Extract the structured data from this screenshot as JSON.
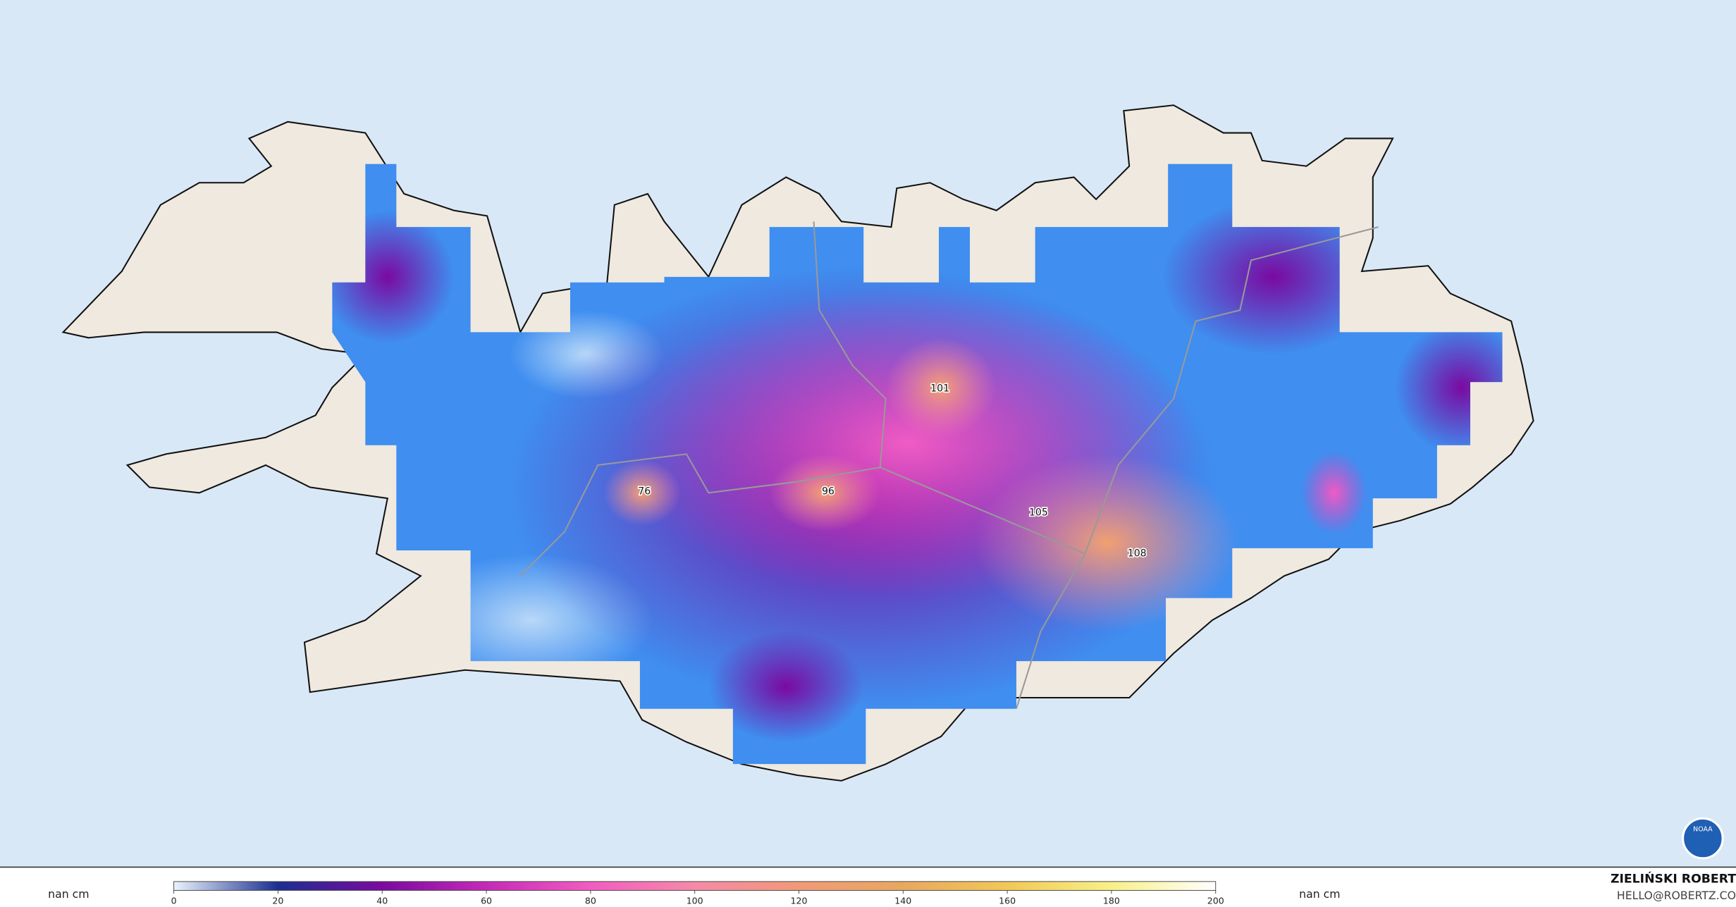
{
  "map": {
    "point_labels": [
      76,
      96,
      101,
      105,
      108
    ]
  },
  "legend": {
    "unit_left": "nan cm",
    "unit_right": "nan cm",
    "lim": [
      0,
      200
    ],
    "ticks": [
      0,
      20,
      40,
      60,
      80,
      100,
      120,
      140,
      160,
      180,
      200
    ],
    "colors": [
      "#eaf3fd",
      "#1b2f8f",
      "#7a0aa0",
      "#c42ab8",
      "#f25cc0",
      "#f48aa8",
      "#f09a78",
      "#e8a860",
      "#f2c858",
      "#f8f088",
      "#ffffff"
    ]
  },
  "credit": {
    "name": "ZIELIŃSKI ROBERT",
    "email": "HELLO@ROBERTZ.CO"
  },
  "logo": "NOAA"
}
